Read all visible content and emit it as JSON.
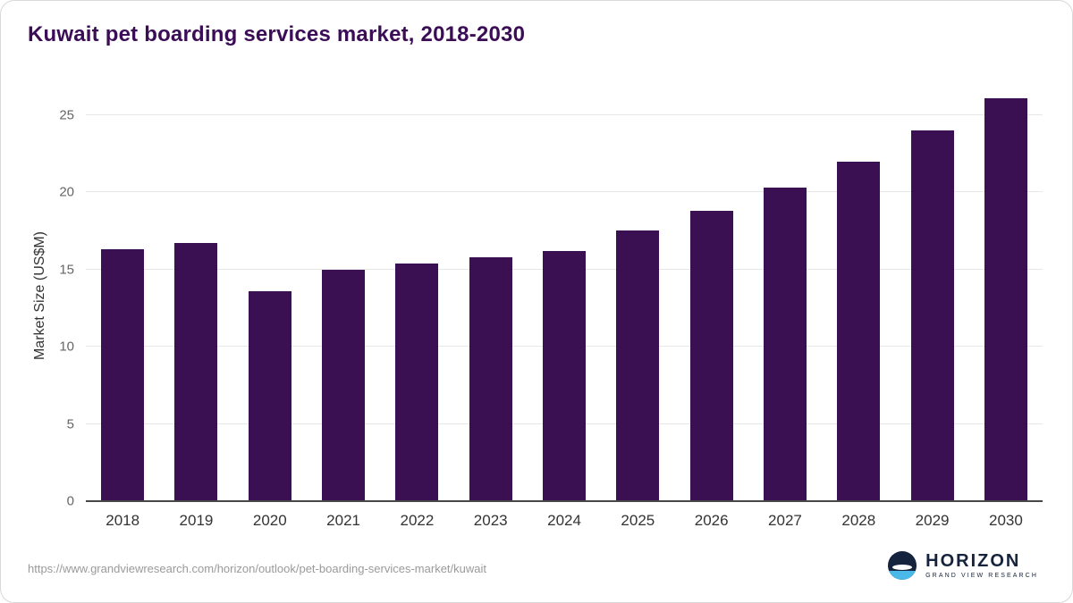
{
  "title": "Kuwait pet boarding services market, 2018-2030",
  "source_url": "https://www.grandviewresearch.com/horizon/outlook/pet-boarding-services-market/kuwait",
  "logo": {
    "name": "HORIZON",
    "subtitle": "GRAND VIEW RESEARCH"
  },
  "colors": {
    "title": "#3b0d56",
    "bar": "#3b1053",
    "gridline": "#e7e7e7",
    "axis_line": "#474747",
    "tick_text": "#666666",
    "x_tick_text": "#333333",
    "source_text": "#9a9a9a",
    "logo_navy": "#15233d",
    "logo_blue": "#4ab8e8"
  },
  "chart_data": {
    "type": "bar",
    "title": "Kuwait pet boarding services market, 2018-2030",
    "xlabel": "",
    "ylabel": "Market Size (US$M)",
    "categories": [
      "2018",
      "2019",
      "2020",
      "2021",
      "2022",
      "2023",
      "2024",
      "2025",
      "2026",
      "2027",
      "2028",
      "2029",
      "2030"
    ],
    "values": [
      16.3,
      16.7,
      13.6,
      15.0,
      15.4,
      15.8,
      16.2,
      17.5,
      18.8,
      20.3,
      22.0,
      24.0,
      26.1
    ],
    "ylim": [
      0,
      26.6
    ],
    "yticks": [
      0,
      5,
      10,
      15,
      20,
      25
    ],
    "grid": true,
    "legend": false,
    "bar_color": "#3b1053"
  }
}
